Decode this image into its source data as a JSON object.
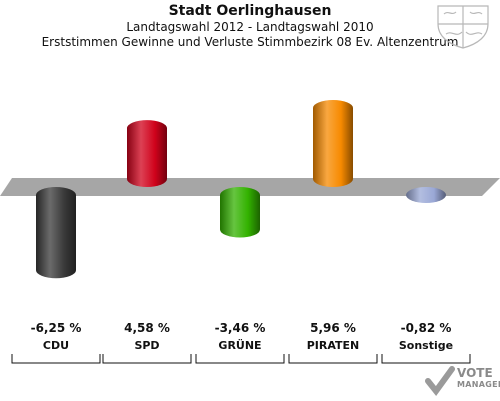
{
  "header": {
    "title": "Stadt Oerlinghausen",
    "subtitle": "Landtagswahl 2012 - Landtagswahl 2010",
    "subtitle2": "Erststimmen Gewinne und Verluste Stimmbezirk 08 Ev. Altenzentrum"
  },
  "logo": {
    "word1": "VOTE",
    "word2": "MANAGER"
  },
  "chart_data": {
    "type": "bar",
    "title": "Stadt Oerlinghausen",
    "subtitle": "Landtagswahl 2012 - Landtagswahl 2010",
    "categories": [
      "CDU",
      "SPD",
      "GRÜNE",
      "PIRATEN",
      "Sonstige"
    ],
    "values": [
      -6.25,
      4.58,
      -3.46,
      5.96,
      -0.82
    ],
    "value_labels": [
      "-6,25 %",
      "4,58 %",
      "-3,46 %",
      "5,96 %",
      "-0,82 %"
    ],
    "colors": [
      "#3a3a3a",
      "#d0021b",
      "#33b200",
      "#f78a00",
      "#9aa8d6"
    ],
    "ylim": [
      -7.5,
      7
    ],
    "xlabel": "",
    "ylabel": "",
    "grid": false,
    "legend": "none"
  }
}
